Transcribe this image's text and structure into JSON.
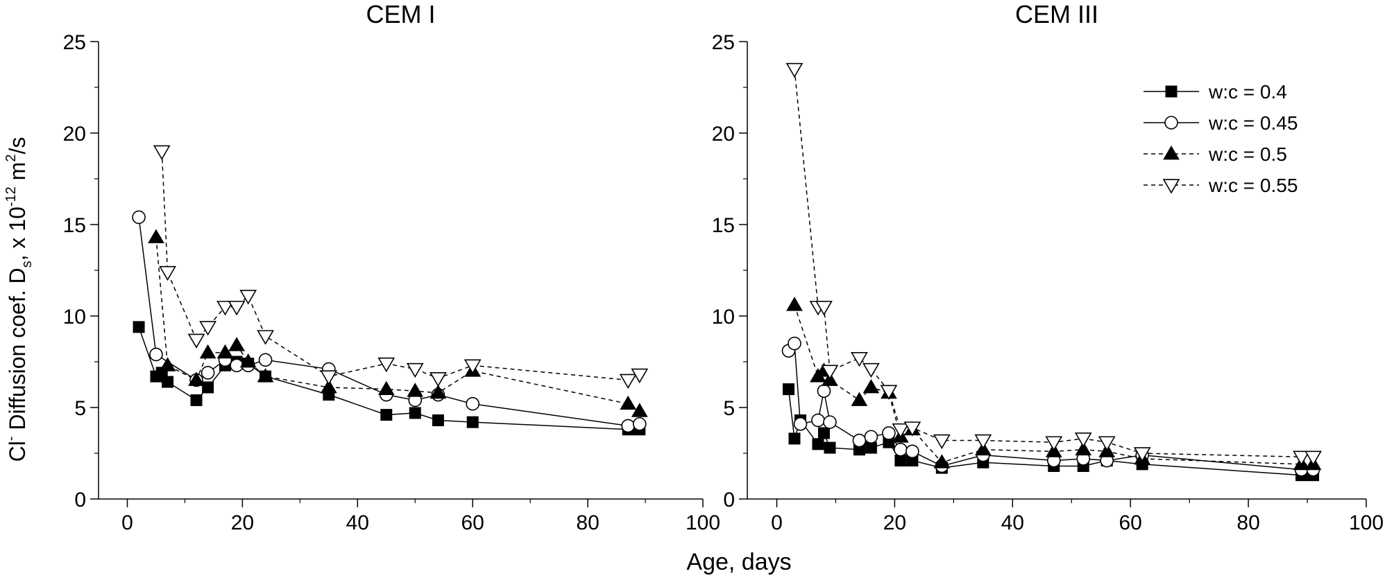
{
  "figure": {
    "xlabel": "Age, days",
    "ylabel": {
      "part1": "Cl",
      "sup1": "-",
      "part2": " Diffusion coef. D",
      "sub1": "s",
      "part3": ", x 10",
      "sup2": "-12",
      "part4": " m",
      "sup3": "2",
      "part5": "/s"
    }
  },
  "chart_data": [
    {
      "type": "line",
      "title": "CEM I",
      "xlabel": "Age, days",
      "ylabel": "Cl- Diffusion coef. Ds, x 10-12 m2/s",
      "xlim": [
        -5,
        100
      ],
      "ylim": [
        0,
        25
      ],
      "xticks": [
        0,
        20,
        40,
        60,
        80,
        100
      ],
      "yticks": [
        0,
        5,
        10,
        15,
        20,
        25
      ],
      "legend": "none",
      "series": [
        {
          "name": "w:c = 0.4",
          "marker": "square-filled",
          "line": "solid",
          "x": [
            2,
            5,
            6,
            7,
            12,
            14,
            17,
            19,
            21,
            24,
            35,
            45,
            50,
            54,
            60,
            87,
            89
          ],
          "y": [
            9.4,
            6.7,
            6.9,
            6.4,
            5.4,
            6.1,
            7.3,
            7.5,
            7.4,
            6.7,
            5.7,
            4.6,
            4.7,
            4.3,
            4.2,
            3.8,
            3.8
          ]
        },
        {
          "name": "w:c = 0.45",
          "marker": "circle-open",
          "line": "solid",
          "x": [
            2,
            5,
            12,
            14,
            17,
            19,
            21,
            24,
            35,
            45,
            50,
            54,
            60,
            87,
            89
          ],
          "y": [
            15.4,
            7.9,
            6.5,
            6.9,
            7.6,
            7.3,
            7.3,
            7.6,
            7.1,
            5.7,
            5.4,
            5.7,
            5.2,
            4.0,
            4.1
          ]
        },
        {
          "name": "w:c = 0.5",
          "marker": "triangle-up-filled",
          "line": "dashed",
          "x": [
            5,
            7,
            12,
            14,
            17,
            19,
            21,
            24,
            35,
            45,
            50,
            54,
            60,
            87,
            89
          ],
          "y": [
            14.3,
            7.3,
            6.5,
            8.0,
            8.0,
            8.4,
            7.5,
            6.7,
            6.1,
            6.0,
            5.9,
            5.8,
            7.0,
            5.2,
            4.8
          ]
        },
        {
          "name": "w:c = 0.55",
          "marker": "triangle-down-open",
          "line": "dashed",
          "x": [
            6,
            7,
            12,
            14,
            17,
            19,
            21,
            24,
            35,
            45,
            50,
            54,
            60,
            87,
            89
          ],
          "y": [
            19.0,
            12.4,
            8.7,
            9.4,
            10.5,
            10.5,
            11.1,
            8.9,
            6.7,
            7.4,
            7.1,
            6.6,
            7.3,
            6.5,
            6.8
          ]
        }
      ]
    },
    {
      "type": "line",
      "title": "CEM III",
      "xlabel": "Age, days",
      "ylabel": "",
      "xlim": [
        -5,
        100
      ],
      "ylim": [
        0,
        25
      ],
      "xticks": [
        0,
        20,
        40,
        60,
        80,
        100
      ],
      "yticks": [
        0,
        5,
        10,
        15,
        20,
        25
      ],
      "legend": "top-right",
      "series": [
        {
          "name": "w:c = 0.4",
          "marker": "square-filled",
          "line": "solid",
          "x": [
            2,
            3,
            4,
            7,
            8,
            9,
            14,
            16,
            19,
            21,
            23,
            28,
            35,
            47,
            52,
            56,
            62,
            89,
            91
          ],
          "y": [
            6.0,
            3.3,
            4.3,
            3.0,
            3.6,
            2.8,
            2.7,
            2.8,
            3.1,
            2.1,
            2.1,
            1.7,
            2.0,
            1.8,
            1.8,
            2.1,
            1.9,
            1.3,
            1.3
          ]
        },
        {
          "name": "w:c = 0.45",
          "marker": "circle-open",
          "line": "solid",
          "x": [
            2,
            3,
            4,
            7,
            8,
            9,
            14,
            16,
            19,
            21,
            23,
            28,
            35,
            47,
            52,
            56,
            62,
            89,
            91
          ],
          "y": [
            8.1,
            8.5,
            4.1,
            4.3,
            5.9,
            4.2,
            3.2,
            3.4,
            3.6,
            2.7,
            2.6,
            1.8,
            2.4,
            2.1,
            2.2,
            2.1,
            2.4,
            1.6,
            1.6
          ]
        },
        {
          "name": "w:c = 0.5",
          "marker": "triangle-up-filled",
          "line": "dashed",
          "x": [
            3,
            7,
            8,
            9,
            14,
            16,
            19,
            21,
            23,
            28,
            35,
            47,
            52,
            56,
            62,
            89,
            91
          ],
          "y": [
            10.6,
            6.7,
            7.0,
            6.5,
            5.4,
            6.1,
            5.8,
            3.4,
            3.8,
            2.0,
            2.7,
            2.6,
            2.7,
            2.6,
            2.2,
            1.9,
            1.9
          ]
        },
        {
          "name": "w:c = 0.55",
          "marker": "triangle-down-open",
          "line": "dashed",
          "x": [
            3,
            7,
            8,
            9,
            14,
            16,
            19,
            21,
            23,
            28,
            35,
            47,
            52,
            56,
            62,
            89,
            91
          ],
          "y": [
            23.5,
            10.5,
            10.5,
            7.0,
            7.7,
            7.1,
            5.9,
            3.8,
            3.9,
            3.2,
            3.2,
            3.1,
            3.3,
            3.1,
            2.5,
            2.3,
            2.3
          ]
        }
      ]
    }
  ]
}
